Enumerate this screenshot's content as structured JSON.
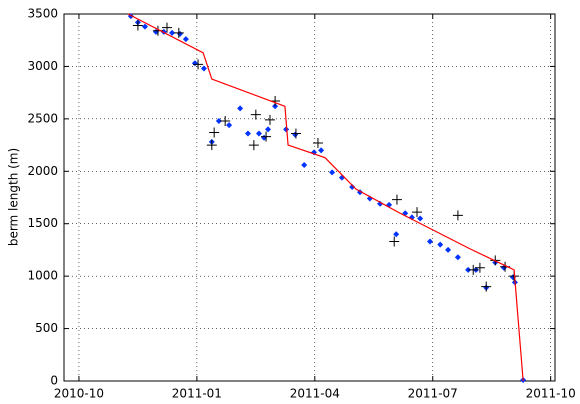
{
  "chart_data": {
    "type": "scatter",
    "y_label": "berm length (m)",
    "xlim": [
      -0.38,
      12.11
    ],
    "ylim": [
      0,
      3500
    ],
    "xticks": [
      {
        "value": 0,
        "label": "2010-10"
      },
      {
        "value": 3,
        "label": "2011-01"
      },
      {
        "value": 6,
        "label": "2011-04"
      },
      {
        "value": 9,
        "label": "2011-07"
      },
      {
        "value": 12,
        "label": "2011-10"
      }
    ],
    "yticks": [
      0,
      500,
      1000,
      1500,
      2000,
      2500,
      3000,
      3500
    ],
    "grid": true,
    "series": [
      {
        "marker": "dot",
        "color": "#0033ff",
        "x": [
          1.32,
          1.5,
          1.68,
          1.96,
          2.16,
          2.37,
          2.57,
          2.72,
          2.95,
          3.18,
          3.38,
          3.56,
          3.82,
          4.1,
          4.3,
          4.58,
          4.71,
          4.81,
          4.99,
          5.27,
          5.5,
          5.73,
          5.98,
          6.16,
          6.44,
          6.69,
          6.95,
          7.15,
          7.4,
          7.66,
          7.89,
          8.07,
          8.3,
          8.47,
          8.68,
          8.93,
          9.19,
          9.39,
          9.64,
          9.9,
          10.1,
          10.36,
          10.59,
          10.81,
          11.04,
          11.09,
          11.3
        ],
        "values": [
          3480,
          3420,
          3380,
          3330,
          3330,
          3320,
          3310,
          3260,
          3030,
          2980,
          2280,
          2480,
          2440,
          2600,
          2360,
          2360,
          2320,
          2400,
          2620,
          2400,
          2350,
          2060,
          2180,
          2200,
          1990,
          1940,
          1850,
          1800,
          1740,
          1690,
          1680,
          1400,
          1600,
          1560,
          1550,
          1330,
          1300,
          1250,
          1180,
          1060,
          1060,
          890,
          1130,
          1080,
          990,
          940,
          10
        ]
      },
      {
        "marker": "plus",
        "color": "#000000",
        "x": [
          1.5,
          2.01,
          2.24,
          2.54,
          3.03,
          3.38,
          3.44,
          3.72,
          4.45,
          4.5,
          4.76,
          4.86,
          4.99,
          5.52,
          6.08,
          8.09,
          8.02,
          8.6,
          9.64,
          10.03,
          10.2,
          10.36,
          10.59,
          10.84,
          11.07
        ],
        "values": [
          3390,
          3340,
          3370,
          3320,
          3020,
          2250,
          2370,
          2480,
          2250,
          2540,
          2330,
          2490,
          2670,
          2360,
          2270,
          1730,
          1330,
          1610,
          1580,
          1060,
          1080,
          900,
          1150,
          1090,
          1000
        ]
      },
      {
        "marker": "line",
        "color": "#ff0000",
        "x": [
          1.25,
          3.16,
          3.38,
          5.24,
          5.32,
          6.26,
          7.05,
          8.17,
          9.95,
          11.07,
          11.3
        ],
        "values": [
          3500,
          3130,
          2880,
          2620,
          2250,
          2130,
          1830,
          1600,
          1260,
          1060,
          0
        ]
      }
    ]
  }
}
